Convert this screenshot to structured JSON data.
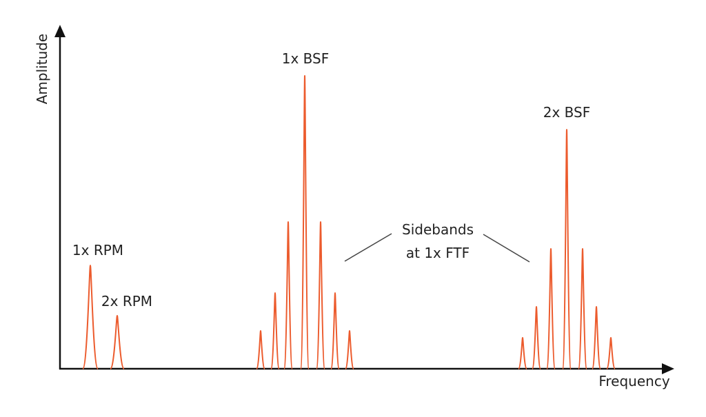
{
  "axes": {
    "y_label": "Amplitude",
    "x_label": "Frequency"
  },
  "annotations": {
    "rpm1": "1x RPM",
    "rpm2": "2x RPM",
    "bsf1": "1x BSF",
    "bsf2": "2x BSF",
    "sidebands_line1": "Sidebands",
    "sidebands_line2": "at 1x FTF"
  }
}
